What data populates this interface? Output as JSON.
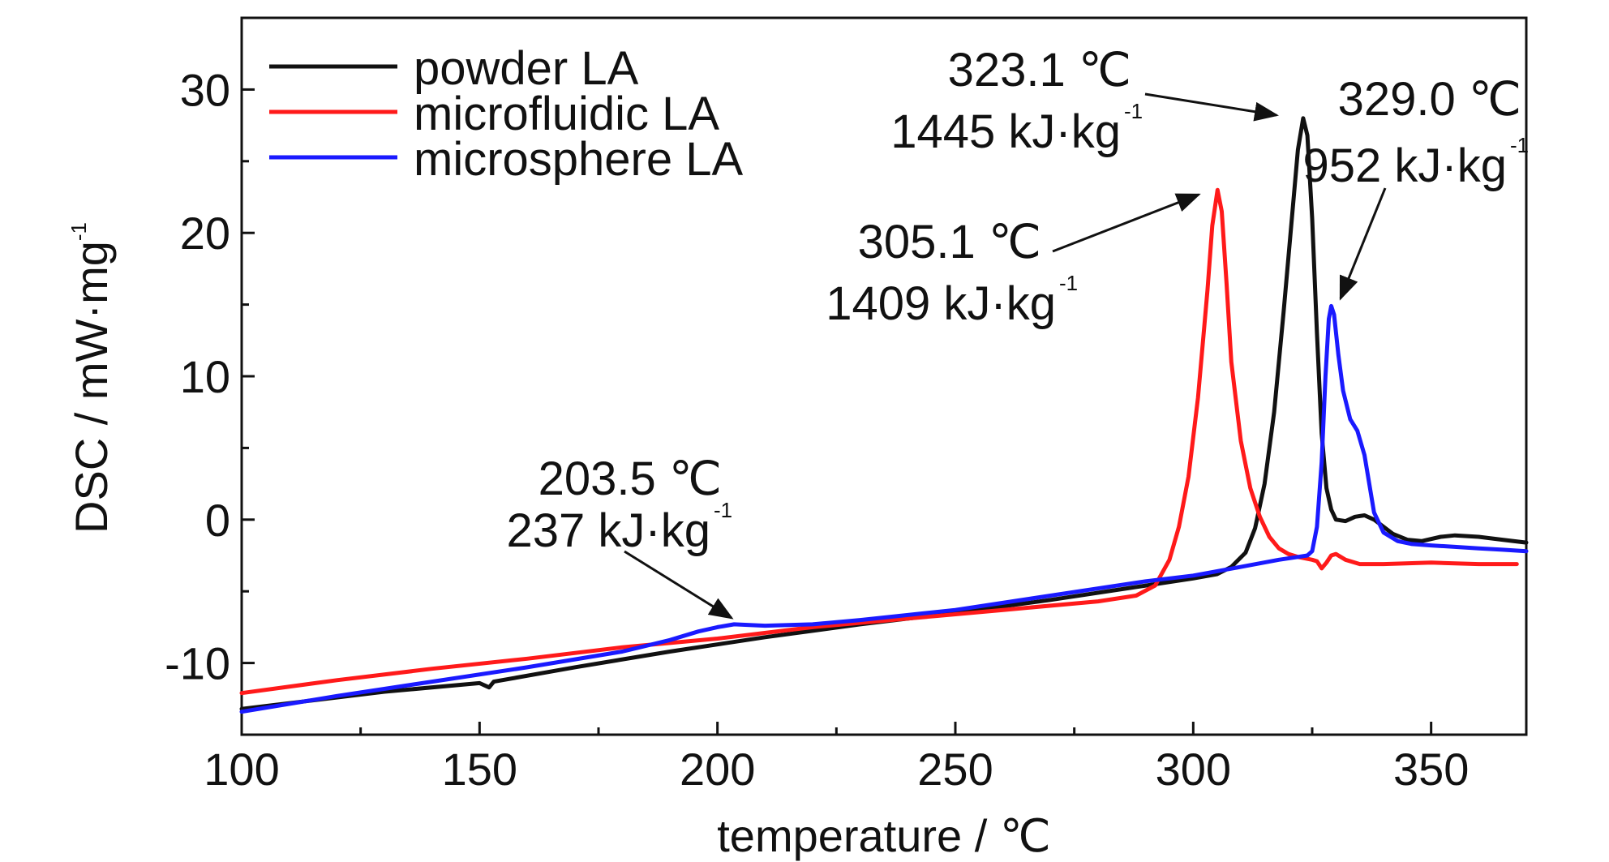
{
  "chart_data": {
    "type": "line",
    "xlabel": "temperature / ℃",
    "ylabel": "DSC / mW·mg",
    "ylabel_sup": "-1",
    "xlim": [
      100,
      370
    ],
    "ylim": [
      -15,
      35
    ],
    "x_ticks": [
      "100",
      "150",
      "200",
      "250",
      "300",
      "350"
    ],
    "y_ticks": [
      "-10",
      "0",
      "10",
      "20",
      "30"
    ],
    "grid": false,
    "legend_position": "top-left",
    "series": [
      {
        "name": "powder LA",
        "color": "#111111",
        "points": [
          [
            100,
            -13.2
          ],
          [
            130,
            -12.0
          ],
          [
            150,
            -11.4
          ],
          [
            152,
            -11.7
          ],
          [
            153,
            -11.3
          ],
          [
            170,
            -10.3
          ],
          [
            190,
            -9.2
          ],
          [
            210,
            -8.2
          ],
          [
            230,
            -7.3
          ],
          [
            250,
            -6.5
          ],
          [
            270,
            -5.6
          ],
          [
            290,
            -4.6
          ],
          [
            300,
            -4.1
          ],
          [
            305,
            -3.8
          ],
          [
            308,
            -3.3
          ],
          [
            311,
            -2.3
          ],
          [
            313,
            -0.6
          ],
          [
            315,
            2.5
          ],
          [
            317,
            7.5
          ],
          [
            319,
            14.5
          ],
          [
            321,
            22.0
          ],
          [
            322,
            25.8
          ],
          [
            323.1,
            28.0
          ],
          [
            324,
            26.8
          ],
          [
            325,
            21.0
          ],
          [
            326,
            13.0
          ],
          [
            327,
            6.0
          ],
          [
            328,
            2.2
          ],
          [
            329,
            0.7
          ],
          [
            330,
            0.0
          ],
          [
            332,
            -0.1
          ],
          [
            334,
            0.2
          ],
          [
            336,
            0.3
          ],
          [
            338,
            0.0
          ],
          [
            340,
            -0.5
          ],
          [
            342,
            -1.0
          ],
          [
            345,
            -1.4
          ],
          [
            348,
            -1.5
          ],
          [
            352,
            -1.2
          ],
          [
            355,
            -1.1
          ],
          [
            360,
            -1.2
          ],
          [
            365,
            -1.4
          ],
          [
            370,
            -1.6
          ]
        ]
      },
      {
        "name": "microfluidic LA",
        "color": "#ff1a1a",
        "points": [
          [
            100,
            -12.1
          ],
          [
            120,
            -11.2
          ],
          [
            140,
            -10.4
          ],
          [
            160,
            -9.7
          ],
          [
            180,
            -8.9
          ],
          [
            200,
            -8.3
          ],
          [
            220,
            -7.5
          ],
          [
            240,
            -6.9
          ],
          [
            260,
            -6.3
          ],
          [
            280,
            -5.7
          ],
          [
            288,
            -5.3
          ],
          [
            292,
            -4.6
          ],
          [
            295,
            -2.8
          ],
          [
            297,
            -0.5
          ],
          [
            299,
            3.0
          ],
          [
            301,
            8.5
          ],
          [
            303,
            16.0
          ],
          [
            304,
            20.5
          ],
          [
            305.1,
            23.0
          ],
          [
            306,
            21.5
          ],
          [
            307,
            16.5
          ],
          [
            308,
            11.0
          ],
          [
            310,
            5.5
          ],
          [
            312,
            2.2
          ],
          [
            314,
            0.2
          ],
          [
            316,
            -1.2
          ],
          [
            318,
            -2.0
          ],
          [
            320,
            -2.4
          ],
          [
            322,
            -2.6
          ],
          [
            325,
            -2.8
          ],
          [
            326,
            -2.9
          ],
          [
            327,
            -3.4
          ],
          [
            328,
            -3.0
          ],
          [
            329,
            -2.5
          ],
          [
            330,
            -2.4
          ],
          [
            332,
            -2.8
          ],
          [
            335,
            -3.1
          ],
          [
            340,
            -3.1
          ],
          [
            350,
            -3.0
          ],
          [
            360,
            -3.1
          ],
          [
            368,
            -3.1
          ]
        ]
      },
      {
        "name": "microsphere LA",
        "color": "#1a1aff",
        "points": [
          [
            100,
            -13.4
          ],
          [
            120,
            -12.3
          ],
          [
            140,
            -11.3
          ],
          [
            160,
            -10.3
          ],
          [
            180,
            -9.2
          ],
          [
            190,
            -8.4
          ],
          [
            196,
            -7.8
          ],
          [
            200,
            -7.5
          ],
          [
            203.5,
            -7.3
          ],
          [
            210,
            -7.4
          ],
          [
            220,
            -7.3
          ],
          [
            230,
            -7.0
          ],
          [
            250,
            -6.3
          ],
          [
            270,
            -5.3
          ],
          [
            290,
            -4.3
          ],
          [
            300,
            -3.9
          ],
          [
            310,
            -3.3
          ],
          [
            318,
            -2.8
          ],
          [
            322,
            -2.6
          ],
          [
            324,
            -2.5
          ],
          [
            325,
            -2.2
          ],
          [
            326,
            -0.5
          ],
          [
            327,
            4.0
          ],
          [
            327.8,
            10.0
          ],
          [
            328.5,
            14.0
          ],
          [
            329.0,
            14.9
          ],
          [
            329.6,
            14.3
          ],
          [
            330.5,
            11.5
          ],
          [
            331.5,
            9.0
          ],
          [
            333,
            7.0
          ],
          [
            334.5,
            6.2
          ],
          [
            336,
            4.5
          ],
          [
            337,
            2.5
          ],
          [
            338,
            0.5
          ],
          [
            340,
            -0.9
          ],
          [
            343,
            -1.5
          ],
          [
            346,
            -1.7
          ],
          [
            350,
            -1.8
          ],
          [
            355,
            -1.9
          ],
          [
            360,
            -2.0
          ],
          [
            365,
            -2.1
          ],
          [
            370,
            -2.2
          ]
        ]
      }
    ],
    "annotations": [
      {
        "temperature": "323.1 ℃",
        "enthalpy": "1445 kJ·kg",
        "sup": "-1",
        "x": 323.1,
        "y": 28.0
      },
      {
        "temperature": "329.0 ℃",
        "enthalpy": "952 kJ·kg",
        "sup": "-1",
        "x": 329.0,
        "y": 14.9
      },
      {
        "temperature": "305.1 ℃",
        "enthalpy": "1409 kJ·kg",
        "sup": "-1",
        "x": 305.1,
        "y": 23.0
      },
      {
        "temperature": "203.5 ℃",
        "enthalpy": "237 kJ·kg",
        "sup": "-1",
        "x": 203.5,
        "y": -7.3
      }
    ]
  }
}
